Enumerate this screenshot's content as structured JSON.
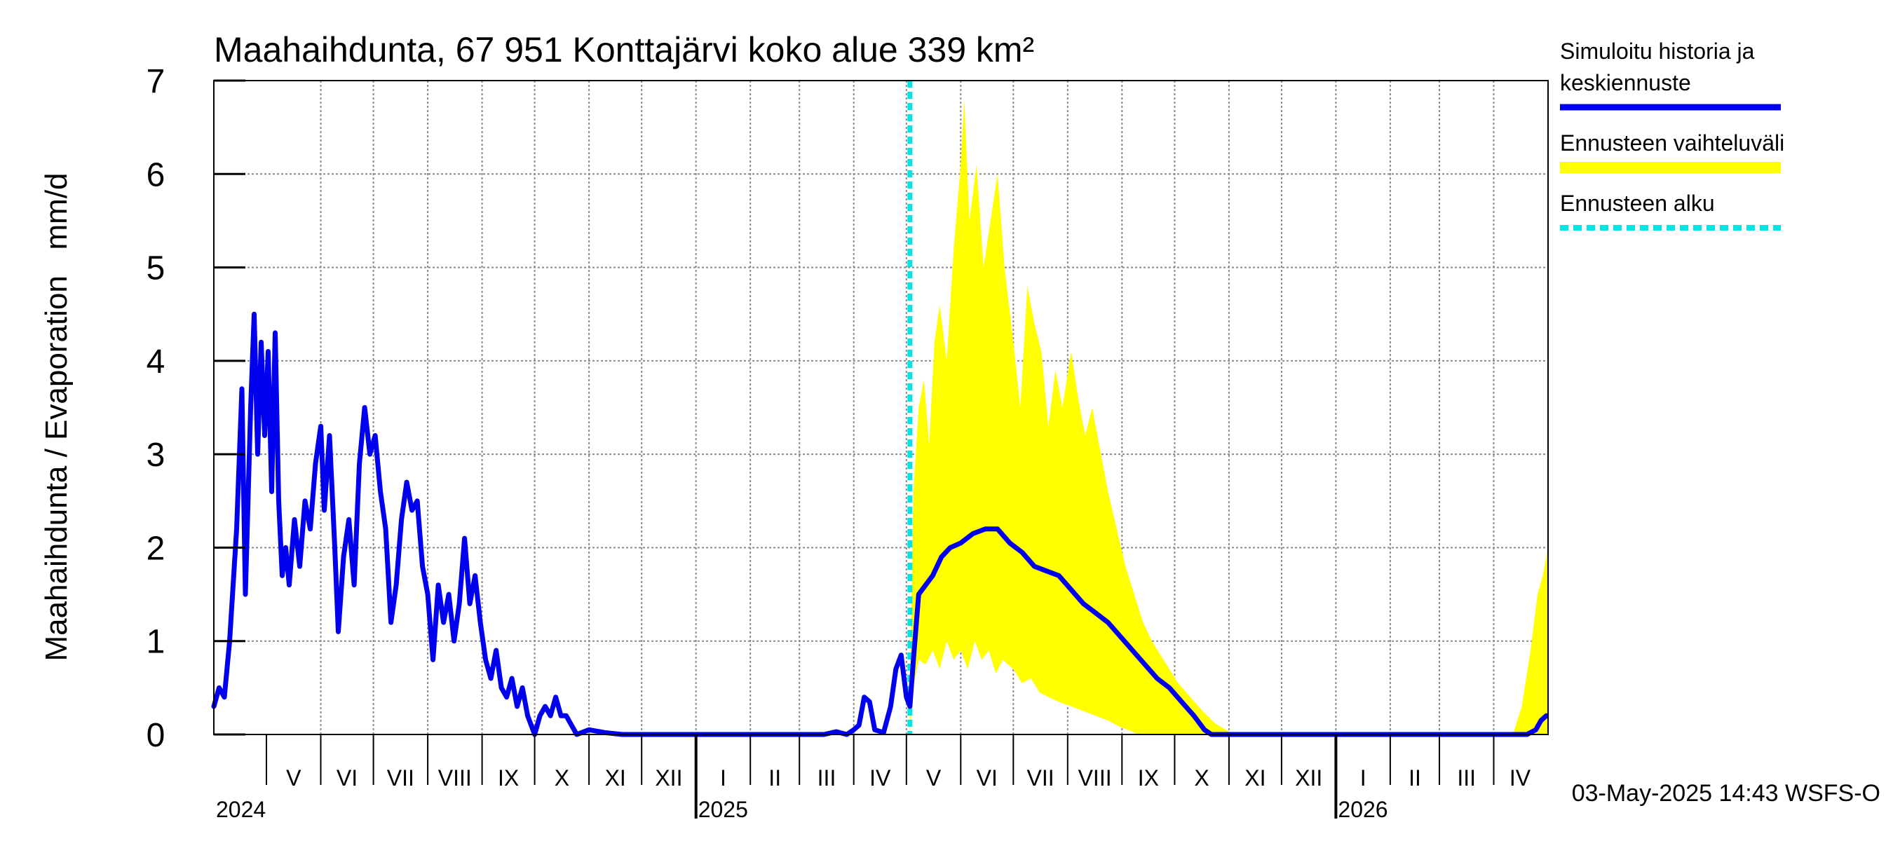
{
  "chart_data": {
    "type": "area",
    "title": "Maahaihdunta, 67 951 Konttajärvi koko alue 339 km²",
    "ylabel": "Maahaihdunta / Evaporation   mm/d",
    "ylim": [
      0,
      7
    ],
    "yticks": [
      "0",
      "1",
      "2",
      "3",
      "4",
      "5",
      "6",
      "7"
    ],
    "xlim": [
      "2024-04-01",
      "2026-05-02"
    ],
    "grid": true,
    "legend_position": "right",
    "months": [
      {
        "label": "V",
        "start": "2024-05-01",
        "end": "2024-06-01"
      },
      {
        "label": "VI",
        "start": "2024-06-01",
        "end": "2024-07-01"
      },
      {
        "label": "VII",
        "start": "2024-07-01",
        "end": "2024-08-01"
      },
      {
        "label": "VIII",
        "start": "2024-08-01",
        "end": "2024-09-01"
      },
      {
        "label": "IX",
        "start": "2024-09-01",
        "end": "2024-10-01"
      },
      {
        "label": "X",
        "start": "2024-10-01",
        "end": "2024-11-01"
      },
      {
        "label": "XI",
        "start": "2024-11-01",
        "end": "2024-12-01"
      },
      {
        "label": "XII",
        "start": "2024-12-01",
        "end": "2025-01-01"
      },
      {
        "label": "I",
        "start": "2025-01-01",
        "end": "2025-02-01"
      },
      {
        "label": "II",
        "start": "2025-02-01",
        "end": "2025-03-01"
      },
      {
        "label": "III",
        "start": "2025-03-01",
        "end": "2025-04-01"
      },
      {
        "label": "IV",
        "start": "2025-04-01",
        "end": "2025-05-01"
      },
      {
        "label": "V",
        "start": "2025-05-01",
        "end": "2025-06-01"
      },
      {
        "label": "VI",
        "start": "2025-06-01",
        "end": "2025-07-01"
      },
      {
        "label": "VII",
        "start": "2025-07-01",
        "end": "2025-08-01"
      },
      {
        "label": "VIII",
        "start": "2025-08-01",
        "end": "2025-09-01"
      },
      {
        "label": "IX",
        "start": "2025-09-01",
        "end": "2025-10-01"
      },
      {
        "label": "X",
        "start": "2025-10-01",
        "end": "2025-11-01"
      },
      {
        "label": "XI",
        "start": "2025-11-01",
        "end": "2025-12-01"
      },
      {
        "label": "XII",
        "start": "2025-12-01",
        "end": "2026-01-01"
      },
      {
        "label": "I",
        "start": "2026-01-01",
        "end": "2026-02-01"
      },
      {
        "label": "II",
        "start": "2026-02-01",
        "end": "2026-03-01"
      },
      {
        "label": "III",
        "start": "2026-03-01",
        "end": "2026-04-01"
      },
      {
        "label": "IV",
        "start": "2026-04-01",
        "end": "2026-05-01"
      }
    ],
    "years": [
      {
        "label": "2024",
        "start": "2024-04-01"
      },
      {
        "label": "2025",
        "start": "2025-01-01"
      },
      {
        "label": "2026",
        "start": "2026-01-01"
      }
    ],
    "forecast_start": "2025-05-03",
    "series": [
      {
        "name": "Simuloitu historia ja keskiennuste",
        "color": "#0000ee",
        "style": "line",
        "points": [
          [
            "2024-04-01",
            0.3
          ],
          [
            "2024-04-04",
            0.5
          ],
          [
            "2024-04-07",
            0.4
          ],
          [
            "2024-04-10",
            1.0
          ],
          [
            "2024-04-14",
            2.2
          ],
          [
            "2024-04-17",
            3.7
          ],
          [
            "2024-04-19",
            1.5
          ],
          [
            "2024-04-22",
            3.5
          ],
          [
            "2024-04-24",
            4.5
          ],
          [
            "2024-04-26",
            3.0
          ],
          [
            "2024-04-28",
            4.2
          ],
          [
            "2024-04-30",
            3.2
          ],
          [
            "2024-05-02",
            4.1
          ],
          [
            "2024-05-04",
            2.6
          ],
          [
            "2024-05-06",
            4.3
          ],
          [
            "2024-05-08",
            2.5
          ],
          [
            "2024-05-10",
            1.7
          ],
          [
            "2024-05-12",
            2.0
          ],
          [
            "2024-05-14",
            1.6
          ],
          [
            "2024-05-17",
            2.3
          ],
          [
            "2024-05-20",
            1.8
          ],
          [
            "2024-05-23",
            2.5
          ],
          [
            "2024-05-26",
            2.2
          ],
          [
            "2024-05-29",
            2.9
          ],
          [
            "2024-06-01",
            3.3
          ],
          [
            "2024-06-03",
            2.4
          ],
          [
            "2024-06-06",
            3.2
          ],
          [
            "2024-06-09",
            2.0
          ],
          [
            "2024-06-11",
            1.1
          ],
          [
            "2024-06-14",
            1.9
          ],
          [
            "2024-06-17",
            2.3
          ],
          [
            "2024-06-20",
            1.6
          ],
          [
            "2024-06-23",
            2.9
          ],
          [
            "2024-06-26",
            3.5
          ],
          [
            "2024-06-29",
            3.0
          ],
          [
            "2024-07-02",
            3.2
          ],
          [
            "2024-07-05",
            2.6
          ],
          [
            "2024-07-08",
            2.2
          ],
          [
            "2024-07-11",
            1.2
          ],
          [
            "2024-07-14",
            1.6
          ],
          [
            "2024-07-17",
            2.3
          ],
          [
            "2024-07-20",
            2.7
          ],
          [
            "2024-07-23",
            2.4
          ],
          [
            "2024-07-26",
            2.5
          ],
          [
            "2024-07-29",
            1.8
          ],
          [
            "2024-08-01",
            1.5
          ],
          [
            "2024-08-04",
            0.8
          ],
          [
            "2024-08-07",
            1.6
          ],
          [
            "2024-08-10",
            1.2
          ],
          [
            "2024-08-13",
            1.5
          ],
          [
            "2024-08-16",
            1.0
          ],
          [
            "2024-08-19",
            1.4
          ],
          [
            "2024-08-22",
            2.1
          ],
          [
            "2024-08-25",
            1.4
          ],
          [
            "2024-08-28",
            1.7
          ],
          [
            "2024-08-31",
            1.2
          ],
          [
            "2024-09-03",
            0.8
          ],
          [
            "2024-09-06",
            0.6
          ],
          [
            "2024-09-09",
            0.9
          ],
          [
            "2024-09-12",
            0.5
          ],
          [
            "2024-09-15",
            0.4
          ],
          [
            "2024-09-18",
            0.6
          ],
          [
            "2024-09-21",
            0.3
          ],
          [
            "2024-09-24",
            0.5
          ],
          [
            "2024-09-27",
            0.2
          ],
          [
            "2024-10-01",
            0.0
          ],
          [
            "2024-10-04",
            0.2
          ],
          [
            "2024-10-07",
            0.3
          ],
          [
            "2024-10-10",
            0.2
          ],
          [
            "2024-10-13",
            0.4
          ],
          [
            "2024-10-16",
            0.2
          ],
          [
            "2024-10-19",
            0.2
          ],
          [
            "2024-10-22",
            0.1
          ],
          [
            "2024-10-25",
            0.0
          ],
          [
            "2024-11-01",
            0.05
          ],
          [
            "2024-11-10",
            0.02
          ],
          [
            "2024-11-20",
            0.0
          ],
          [
            "2025-03-15",
            0.0
          ],
          [
            "2025-03-22",
            0.03
          ],
          [
            "2025-03-28",
            0.0
          ],
          [
            "2025-04-01",
            0.05
          ],
          [
            "2025-04-04",
            0.1
          ],
          [
            "2025-04-07",
            0.4
          ],
          [
            "2025-04-10",
            0.35
          ],
          [
            "2025-04-13",
            0.05
          ],
          [
            "2025-04-18",
            0.02
          ],
          [
            "2025-04-22",
            0.3
          ],
          [
            "2025-04-25",
            0.7
          ],
          [
            "2025-04-28",
            0.85
          ],
          [
            "2025-05-01",
            0.4
          ],
          [
            "2025-05-03",
            0.3
          ],
          [
            "2025-05-05",
            0.8
          ],
          [
            "2025-05-08",
            1.5
          ],
          [
            "2025-05-12",
            1.6
          ],
          [
            "2025-05-16",
            1.7
          ],
          [
            "2025-05-21",
            1.9
          ],
          [
            "2025-05-26",
            2.0
          ],
          [
            "2025-06-01",
            2.05
          ],
          [
            "2025-06-08",
            2.15
          ],
          [
            "2025-06-15",
            2.2
          ],
          [
            "2025-06-22",
            2.2
          ],
          [
            "2025-06-29",
            2.05
          ],
          [
            "2025-07-06",
            1.95
          ],
          [
            "2025-07-13",
            1.8
          ],
          [
            "2025-07-20",
            1.75
          ],
          [
            "2025-07-27",
            1.7
          ],
          [
            "2025-08-03",
            1.55
          ],
          [
            "2025-08-10",
            1.4
          ],
          [
            "2025-08-17",
            1.3
          ],
          [
            "2025-08-24",
            1.2
          ],
          [
            "2025-08-31",
            1.05
          ],
          [
            "2025-09-07",
            0.9
          ],
          [
            "2025-09-14",
            0.75
          ],
          [
            "2025-09-21",
            0.6
          ],
          [
            "2025-09-28",
            0.5
          ],
          [
            "2025-10-05",
            0.35
          ],
          [
            "2025-10-12",
            0.2
          ],
          [
            "2025-10-18",
            0.05
          ],
          [
            "2025-10-22",
            0.0
          ],
          [
            "2026-04-20",
            0.0
          ],
          [
            "2026-04-25",
            0.05
          ],
          [
            "2026-04-28",
            0.15
          ],
          [
            "2026-05-01",
            0.2
          ]
        ]
      },
      {
        "name": "Ennusteen vaihteluväli",
        "color": "#ffff00",
        "style": "band",
        "upper": [
          [
            "2025-05-03",
            0.5
          ],
          [
            "2025-05-05",
            2.6
          ],
          [
            "2025-05-08",
            3.5
          ],
          [
            "2025-05-11",
            3.8
          ],
          [
            "2025-05-14",
            3.1
          ],
          [
            "2025-05-17",
            4.2
          ],
          [
            "2025-05-20",
            4.6
          ],
          [
            "2025-05-24",
            4.0
          ],
          [
            "2025-05-28",
            5.2
          ],
          [
            "2025-06-01",
            6.1
          ],
          [
            "2025-06-03",
            6.8
          ],
          [
            "2025-06-06",
            5.5
          ],
          [
            "2025-06-10",
            6.1
          ],
          [
            "2025-06-14",
            5.0
          ],
          [
            "2025-06-18",
            5.5
          ],
          [
            "2025-06-22",
            6.0
          ],
          [
            "2025-06-26",
            5.0
          ],
          [
            "2025-07-01",
            4.2
          ],
          [
            "2025-07-05",
            3.5
          ],
          [
            "2025-07-09",
            4.8
          ],
          [
            "2025-07-13",
            4.4
          ],
          [
            "2025-07-17",
            4.1
          ],
          [
            "2025-07-21",
            3.3
          ],
          [
            "2025-07-25",
            3.9
          ],
          [
            "2025-07-29",
            3.5
          ],
          [
            "2025-08-03",
            4.1
          ],
          [
            "2025-08-07",
            3.6
          ],
          [
            "2025-08-11",
            3.2
          ],
          [
            "2025-08-15",
            3.5
          ],
          [
            "2025-08-19",
            3.1
          ],
          [
            "2025-08-24",
            2.6
          ],
          [
            "2025-08-29",
            2.2
          ],
          [
            "2025-09-03",
            1.8
          ],
          [
            "2025-09-08",
            1.5
          ],
          [
            "2025-09-13",
            1.2
          ],
          [
            "2025-09-18",
            1.0
          ],
          [
            "2025-09-23",
            0.85
          ],
          [
            "2025-09-28",
            0.7
          ],
          [
            "2025-10-03",
            0.55
          ],
          [
            "2025-10-10",
            0.4
          ],
          [
            "2025-10-17",
            0.25
          ],
          [
            "2025-10-24",
            0.12
          ],
          [
            "2025-11-01",
            0.03
          ],
          [
            "2025-11-05",
            0.0
          ],
          [
            "2026-04-12",
            0.0
          ],
          [
            "2026-04-17",
            0.3
          ],
          [
            "2026-04-22",
            0.9
          ],
          [
            "2026-04-26",
            1.5
          ],
          [
            "2026-04-29",
            1.7
          ],
          [
            "2026-05-02",
            2.0
          ]
        ],
        "lower": [
          [
            "2025-05-03",
            0.0
          ],
          [
            "2025-05-05",
            0.5
          ],
          [
            "2025-05-08",
            0.8
          ],
          [
            "2025-05-12",
            0.75
          ],
          [
            "2025-05-16",
            0.9
          ],
          [
            "2025-05-20",
            0.7
          ],
          [
            "2025-05-24",
            1.0
          ],
          [
            "2025-05-28",
            0.8
          ],
          [
            "2025-06-01",
            0.9
          ],
          [
            "2025-06-05",
            0.7
          ],
          [
            "2025-06-09",
            1.0
          ],
          [
            "2025-06-13",
            0.8
          ],
          [
            "2025-06-17",
            0.9
          ],
          [
            "2025-06-21",
            0.65
          ],
          [
            "2025-06-25",
            0.8
          ],
          [
            "2025-07-01",
            0.7
          ],
          [
            "2025-07-06",
            0.55
          ],
          [
            "2025-07-11",
            0.6
          ],
          [
            "2025-07-16",
            0.45
          ],
          [
            "2025-07-21",
            0.4
          ],
          [
            "2025-07-27",
            0.35
          ],
          [
            "2025-08-03",
            0.3
          ],
          [
            "2025-08-10",
            0.25
          ],
          [
            "2025-08-17",
            0.2
          ],
          [
            "2025-08-24",
            0.15
          ],
          [
            "2025-08-31",
            0.08
          ],
          [
            "2025-09-07",
            0.03
          ],
          [
            "2025-09-10",
            0.0
          ],
          [
            "2026-05-02",
            0.0
          ]
        ]
      },
      {
        "name": "Ennusteen alku",
        "color": "#00e5e5",
        "style": "dashed-vertical",
        "x": "2025-05-03"
      }
    ],
    "legend": [
      {
        "lines": [
          "Simuloitu historia ja",
          "keskiennuste"
        ],
        "color": "#0000ee",
        "style": "solid"
      },
      {
        "lines": [
          "Ennusteen vaihteluväli"
        ],
        "color": "#ffff00",
        "style": "band"
      },
      {
        "lines": [
          "Ennusteen alku"
        ],
        "color": "#00e5e5",
        "style": "dashed"
      }
    ],
    "footer": "03-May-2025 14:43 WSFS-O"
  }
}
